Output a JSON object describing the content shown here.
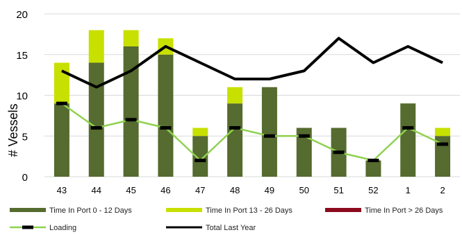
{
  "chart_data": {
    "type": "bar",
    "title": "",
    "xlabel": "",
    "ylabel": "# Vessels",
    "ylim": [
      0,
      20
    ],
    "yticks": [
      0,
      5,
      10,
      15,
      20
    ],
    "grid": true,
    "legend_position": "bottom",
    "categories": [
      "43",
      "44",
      "45",
      "46",
      "47",
      "48",
      "49",
      "50",
      "51",
      "52",
      "1",
      "2"
    ],
    "stacked_series": [
      {
        "name": "Time In Port 0 - 12 Days",
        "color": "#556B2F",
        "values": [
          9,
          14,
          16,
          15,
          5,
          9,
          11,
          6,
          6,
          2,
          9,
          5
        ]
      },
      {
        "name": "Time In Port 13 - 26 Days",
        "color": "#C8E000",
        "values": [
          5,
          4,
          2,
          2,
          1,
          2,
          0,
          0,
          0,
          0,
          0,
          1
        ]
      },
      {
        "name": "Time In Port > 26 Days",
        "color": "#8B0A1E",
        "values": [
          0,
          0,
          0,
          0,
          0,
          0,
          0,
          0,
          0,
          0,
          0,
          0
        ]
      }
    ],
    "line_series": [
      {
        "name": "Loading",
        "color": "#8FD14F",
        "marker": "dash",
        "values": [
          9,
          6,
          7,
          6,
          2,
          6,
          5,
          5,
          3,
          2,
          6,
          4
        ]
      },
      {
        "name": "Total Last Year",
        "color": "#000000",
        "values": [
          13,
          11,
          13,
          16,
          14,
          12,
          12,
          13,
          17,
          14,
          16,
          14
        ]
      }
    ]
  }
}
